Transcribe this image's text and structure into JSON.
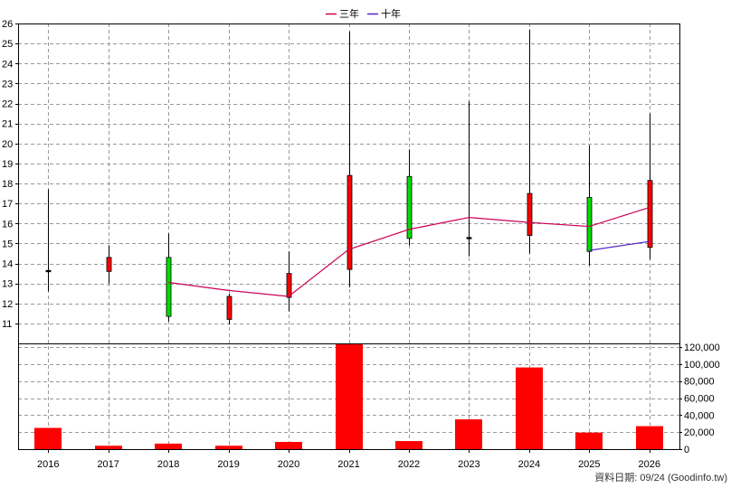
{
  "chart_data": {
    "type": "candlestick",
    "x_labels": [
      "2016",
      "2017",
      "2018",
      "2019",
      "2020",
      "2021",
      "2022",
      "2023",
      "2024",
      "2025",
      "2026"
    ],
    "price_axis": {
      "ylim": [
        10,
        26
      ],
      "ticks": [
        11,
        12,
        13,
        14,
        15,
        16,
        17,
        18,
        19,
        20,
        21,
        22,
        23,
        24,
        25,
        26
      ]
    },
    "candles": [
      {
        "x": "2016",
        "open": 13.65,
        "close": 13.65,
        "high": 17.7,
        "low": 12.6,
        "color": "#000000"
      },
      {
        "x": "2017",
        "open": 13.6,
        "close": 14.3,
        "high": 14.9,
        "low": 13.0,
        "color": "#ff0000"
      },
      {
        "x": "2018",
        "open": 14.3,
        "close": 11.35,
        "high": 15.5,
        "low": 11.1,
        "color": "#00dd00"
      },
      {
        "x": "2019",
        "open": 11.2,
        "close": 12.35,
        "high": 12.5,
        "low": 10.95,
        "color": "#ff0000"
      },
      {
        "x": "2020",
        "open": 12.3,
        "close": 13.5,
        "high": 14.6,
        "low": 11.6,
        "color": "#ff0000"
      },
      {
        "x": "2021",
        "open": 13.7,
        "close": 18.4,
        "high": 25.6,
        "low": 12.8,
        "color": "#ff0000"
      },
      {
        "x": "2022",
        "open": 18.35,
        "close": 15.25,
        "high": 19.7,
        "low": 14.9,
        "color": "#00dd00"
      },
      {
        "x": "2023",
        "open": 15.3,
        "close": 15.3,
        "high": 22.1,
        "low": 14.35,
        "color": "#000000"
      },
      {
        "x": "2024",
        "open": 15.4,
        "close": 17.5,
        "high": 25.7,
        "low": 14.5,
        "color": "#ff0000"
      },
      {
        "x": "2025",
        "open": 17.3,
        "close": 14.6,
        "high": 19.9,
        "low": 13.9,
        "color": "#00dd00"
      },
      {
        "x": "2026",
        "open": 14.8,
        "close": 18.15,
        "high": 21.5,
        "low": 14.2,
        "color": "#ff0000"
      }
    ],
    "series": [
      {
        "name": "三年",
        "color": "#cc0055",
        "points": [
          [
            "2018",
            13.05
          ],
          [
            "2019",
            12.65
          ],
          [
            "2020",
            12.35
          ],
          [
            "2021",
            14.7
          ],
          [
            "2022",
            15.7
          ],
          [
            "2023",
            16.3
          ],
          [
            "2024",
            16.05
          ],
          [
            "2025",
            15.85
          ],
          [
            "2026",
            16.8
          ]
        ]
      },
      {
        "name": "十年",
        "color": "#5522cc",
        "points": [
          [
            "2025",
            14.65
          ],
          [
            "2026",
            15.1
          ]
        ]
      }
    ],
    "volume_axis": {
      "ylim": [
        0,
        120000
      ],
      "ticks": [
        "0",
        "20,000",
        "40,000",
        "60,000",
        "80,000",
        "100,000",
        "120,000"
      ],
      "tick_values": [
        0,
        20000,
        40000,
        60000,
        80000,
        100000,
        120000
      ]
    },
    "volume": [
      {
        "x": "2016",
        "value": 25000
      },
      {
        "x": "2017",
        "value": 4000
      },
      {
        "x": "2018",
        "value": 6500
      },
      {
        "x": "2019",
        "value": 4000
      },
      {
        "x": "2020",
        "value": 8500
      },
      {
        "x": "2021",
        "value": 127000
      },
      {
        "x": "2022",
        "value": 9500
      },
      {
        "x": "2023",
        "value": 35000
      },
      {
        "x": "2024",
        "value": 96000
      },
      {
        "x": "2025",
        "value": 19500
      },
      {
        "x": "2026",
        "value": 27000
      }
    ],
    "volume_color": "#ff0000",
    "grid": true,
    "legend_placement": "top-center"
  },
  "footer": {
    "text": "資料日期: 09/24  (Goodinfo.tw)"
  }
}
